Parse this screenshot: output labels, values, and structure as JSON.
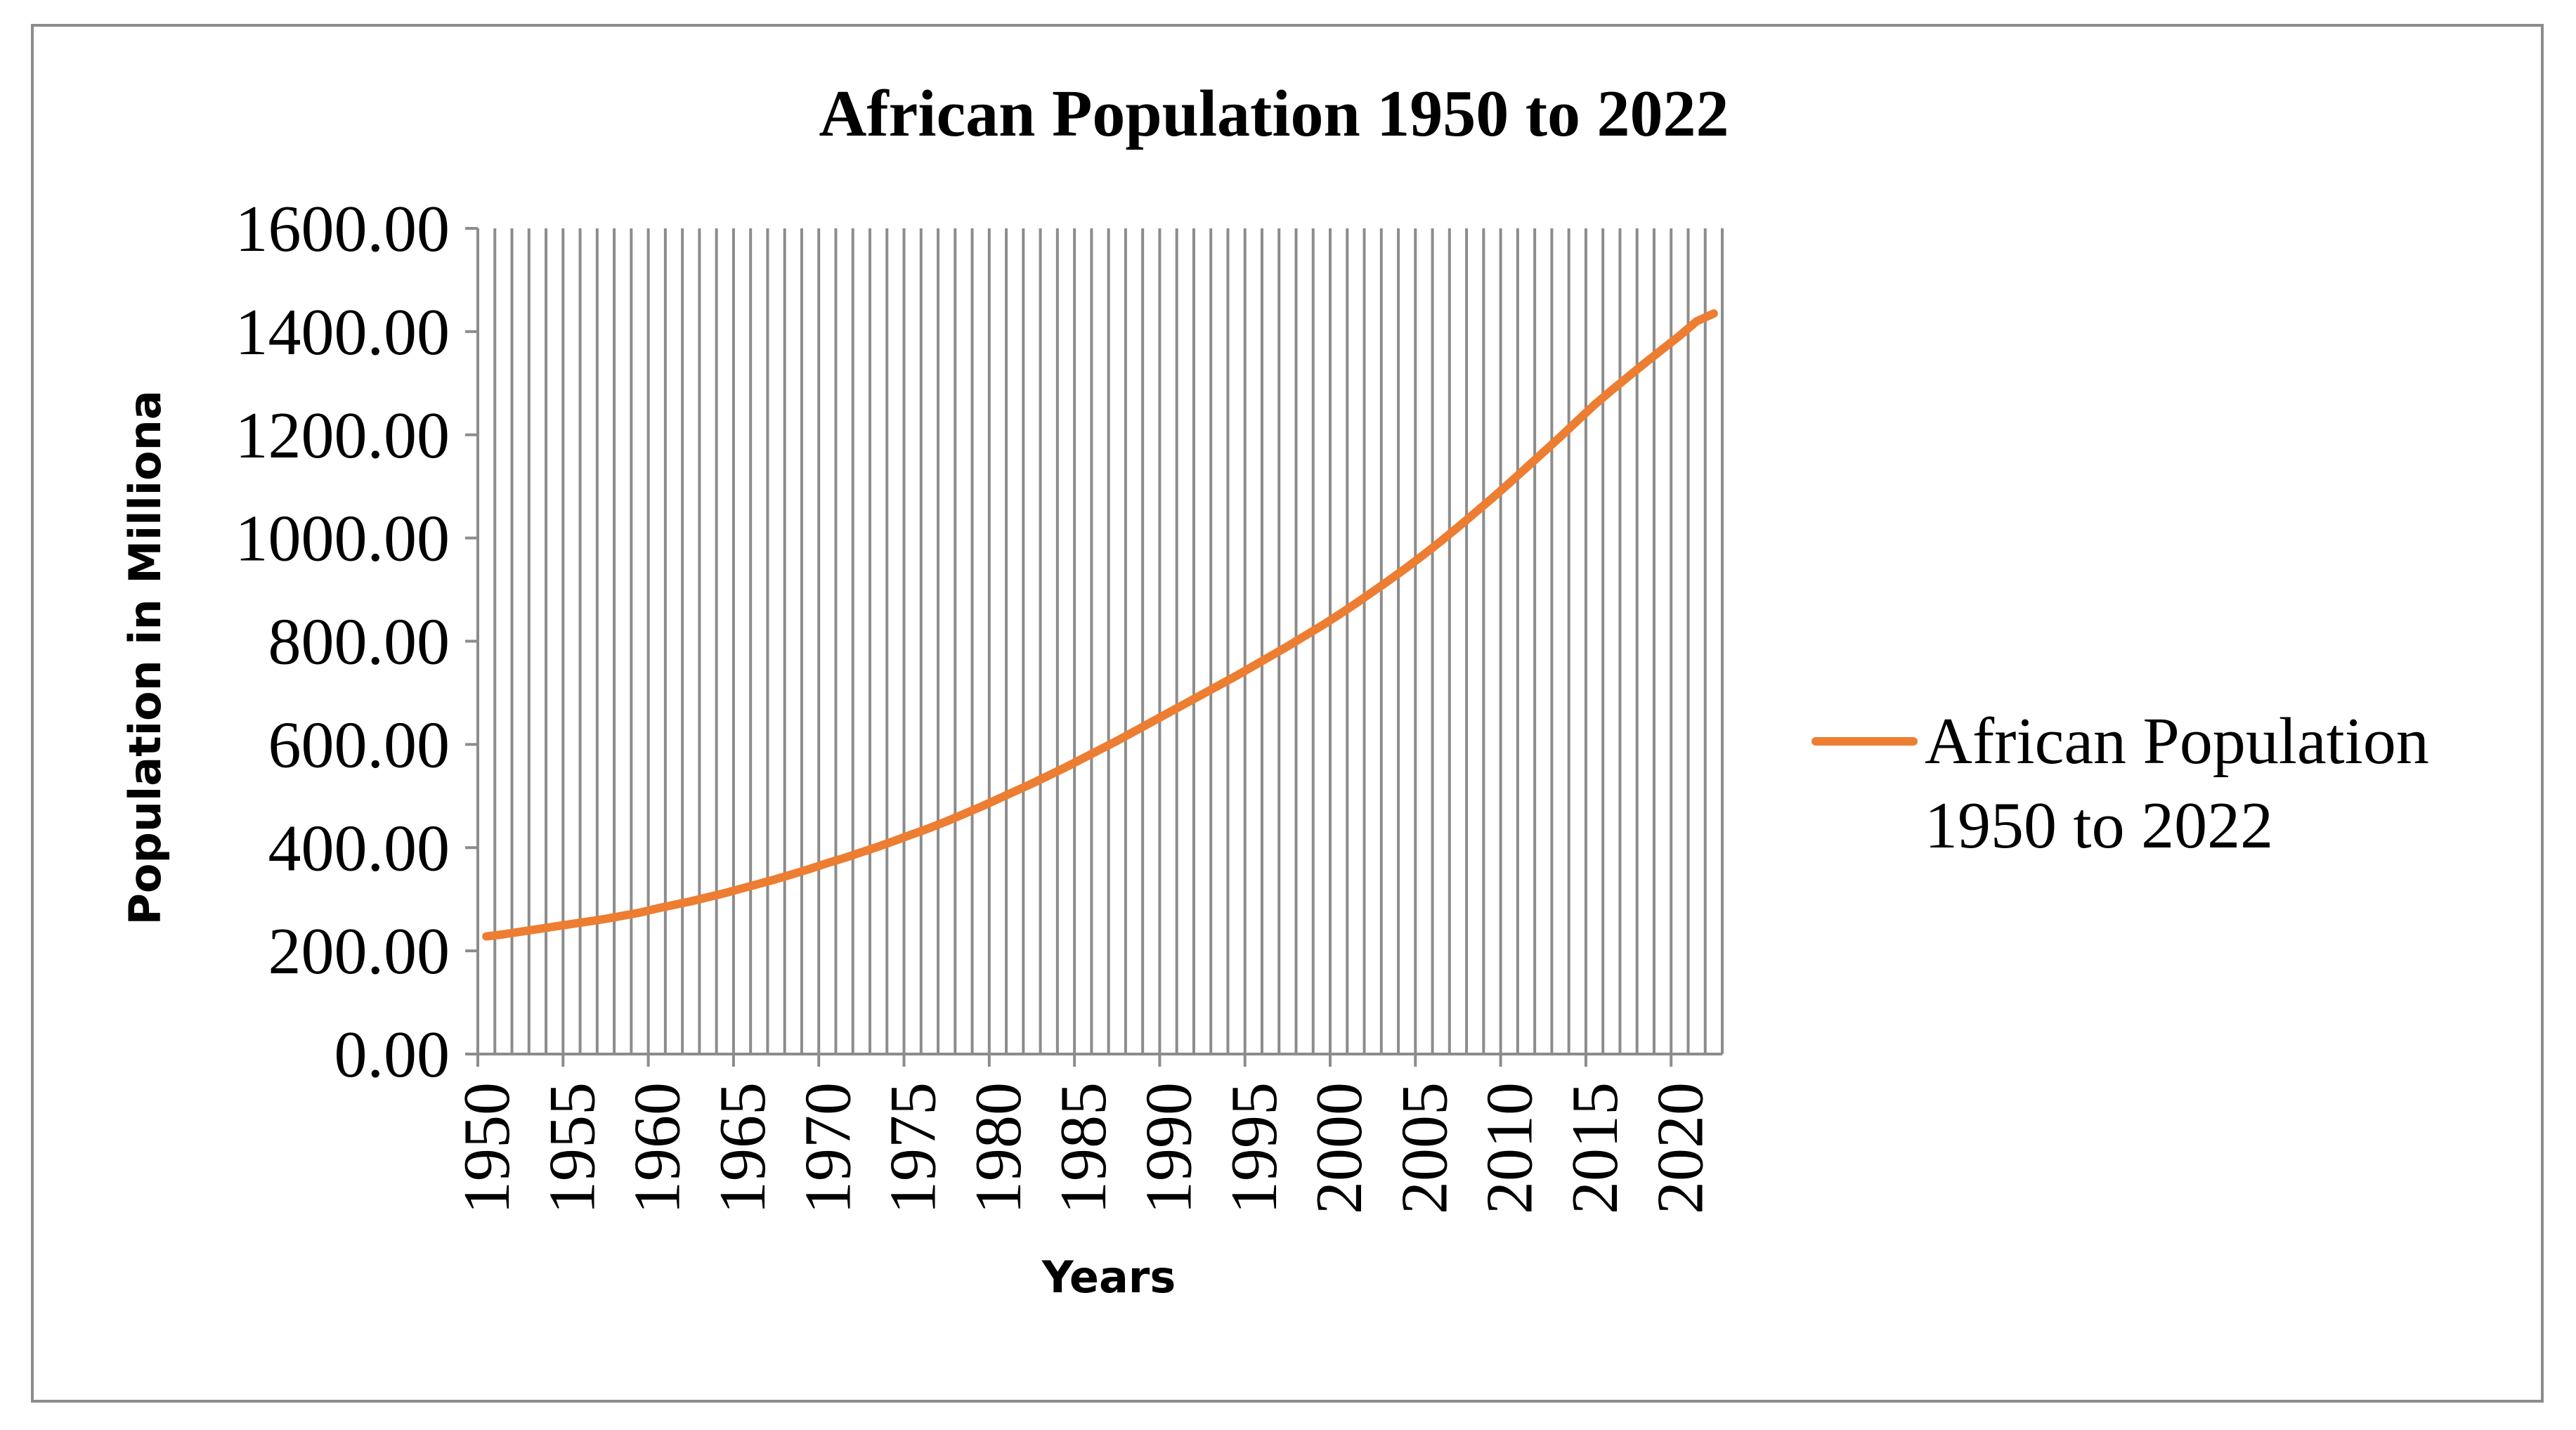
{
  "chart_data": {
    "type": "line",
    "title": "African Population 1950 to 2022",
    "xlabel": "Years",
    "ylabel": "Population in Milliona",
    "ylim": [
      0,
      1600
    ],
    "yticks": [
      "0.00",
      "200.00",
      "400.00",
      "600.00",
      "800.00",
      "1000.00",
      "1200.00",
      "1400.00",
      "1600.00"
    ],
    "xticks": [
      "1950",
      "1955",
      "1960",
      "1965",
      "1970",
      "1975",
      "1980",
      "1985",
      "1990",
      "1995",
      "2000",
      "2005",
      "2010",
      "2015",
      "2020"
    ],
    "grid": "vertical",
    "legend_position": "right",
    "x": [
      1950,
      1951,
      1952,
      1953,
      1954,
      1955,
      1956,
      1957,
      1958,
      1959,
      1960,
      1961,
      1962,
      1963,
      1964,
      1965,
      1966,
      1967,
      1968,
      1969,
      1970,
      1971,
      1972,
      1973,
      1974,
      1975,
      1976,
      1977,
      1978,
      1979,
      1980,
      1981,
      1982,
      1983,
      1984,
      1985,
      1986,
      1987,
      1988,
      1989,
      1990,
      1991,
      1992,
      1993,
      1994,
      1995,
      1996,
      1997,
      1998,
      1999,
      2000,
      2001,
      2002,
      2003,
      2004,
      2005,
      2006,
      2007,
      2008,
      2009,
      2010,
      2011,
      2012,
      2013,
      2014,
      2015,
      2016,
      2017,
      2018,
      2019,
      2020,
      2021,
      2022
    ],
    "series": [
      {
        "name": "African Population 1950 to 2022",
        "color": "#ed7d31",
        "values": [
          228,
          232,
          237,
          242,
          247,
          252,
          257,
          262,
          268,
          274,
          282,
          289,
          296,
          304,
          312,
          321,
          330,
          339,
          349,
          359,
          370,
          380,
          391,
          402,
          414,
          426,
          438,
          451,
          465,
          479,
          494,
          509,
          524,
          540,
          556,
          573,
          590,
          607,
          625,
          643,
          661,
          679,
          697,
          715,
          733,
          752,
          771,
          790,
          810,
          830,
          851,
          873,
          896,
          919,
          943,
          968,
          994,
          1021,
          1049,
          1077,
          1106,
          1136,
          1166,
          1196,
          1227,
          1258,
          1286,
          1313,
          1340,
          1366,
          1392,
          1420,
          1435
        ]
      }
    ]
  }
}
